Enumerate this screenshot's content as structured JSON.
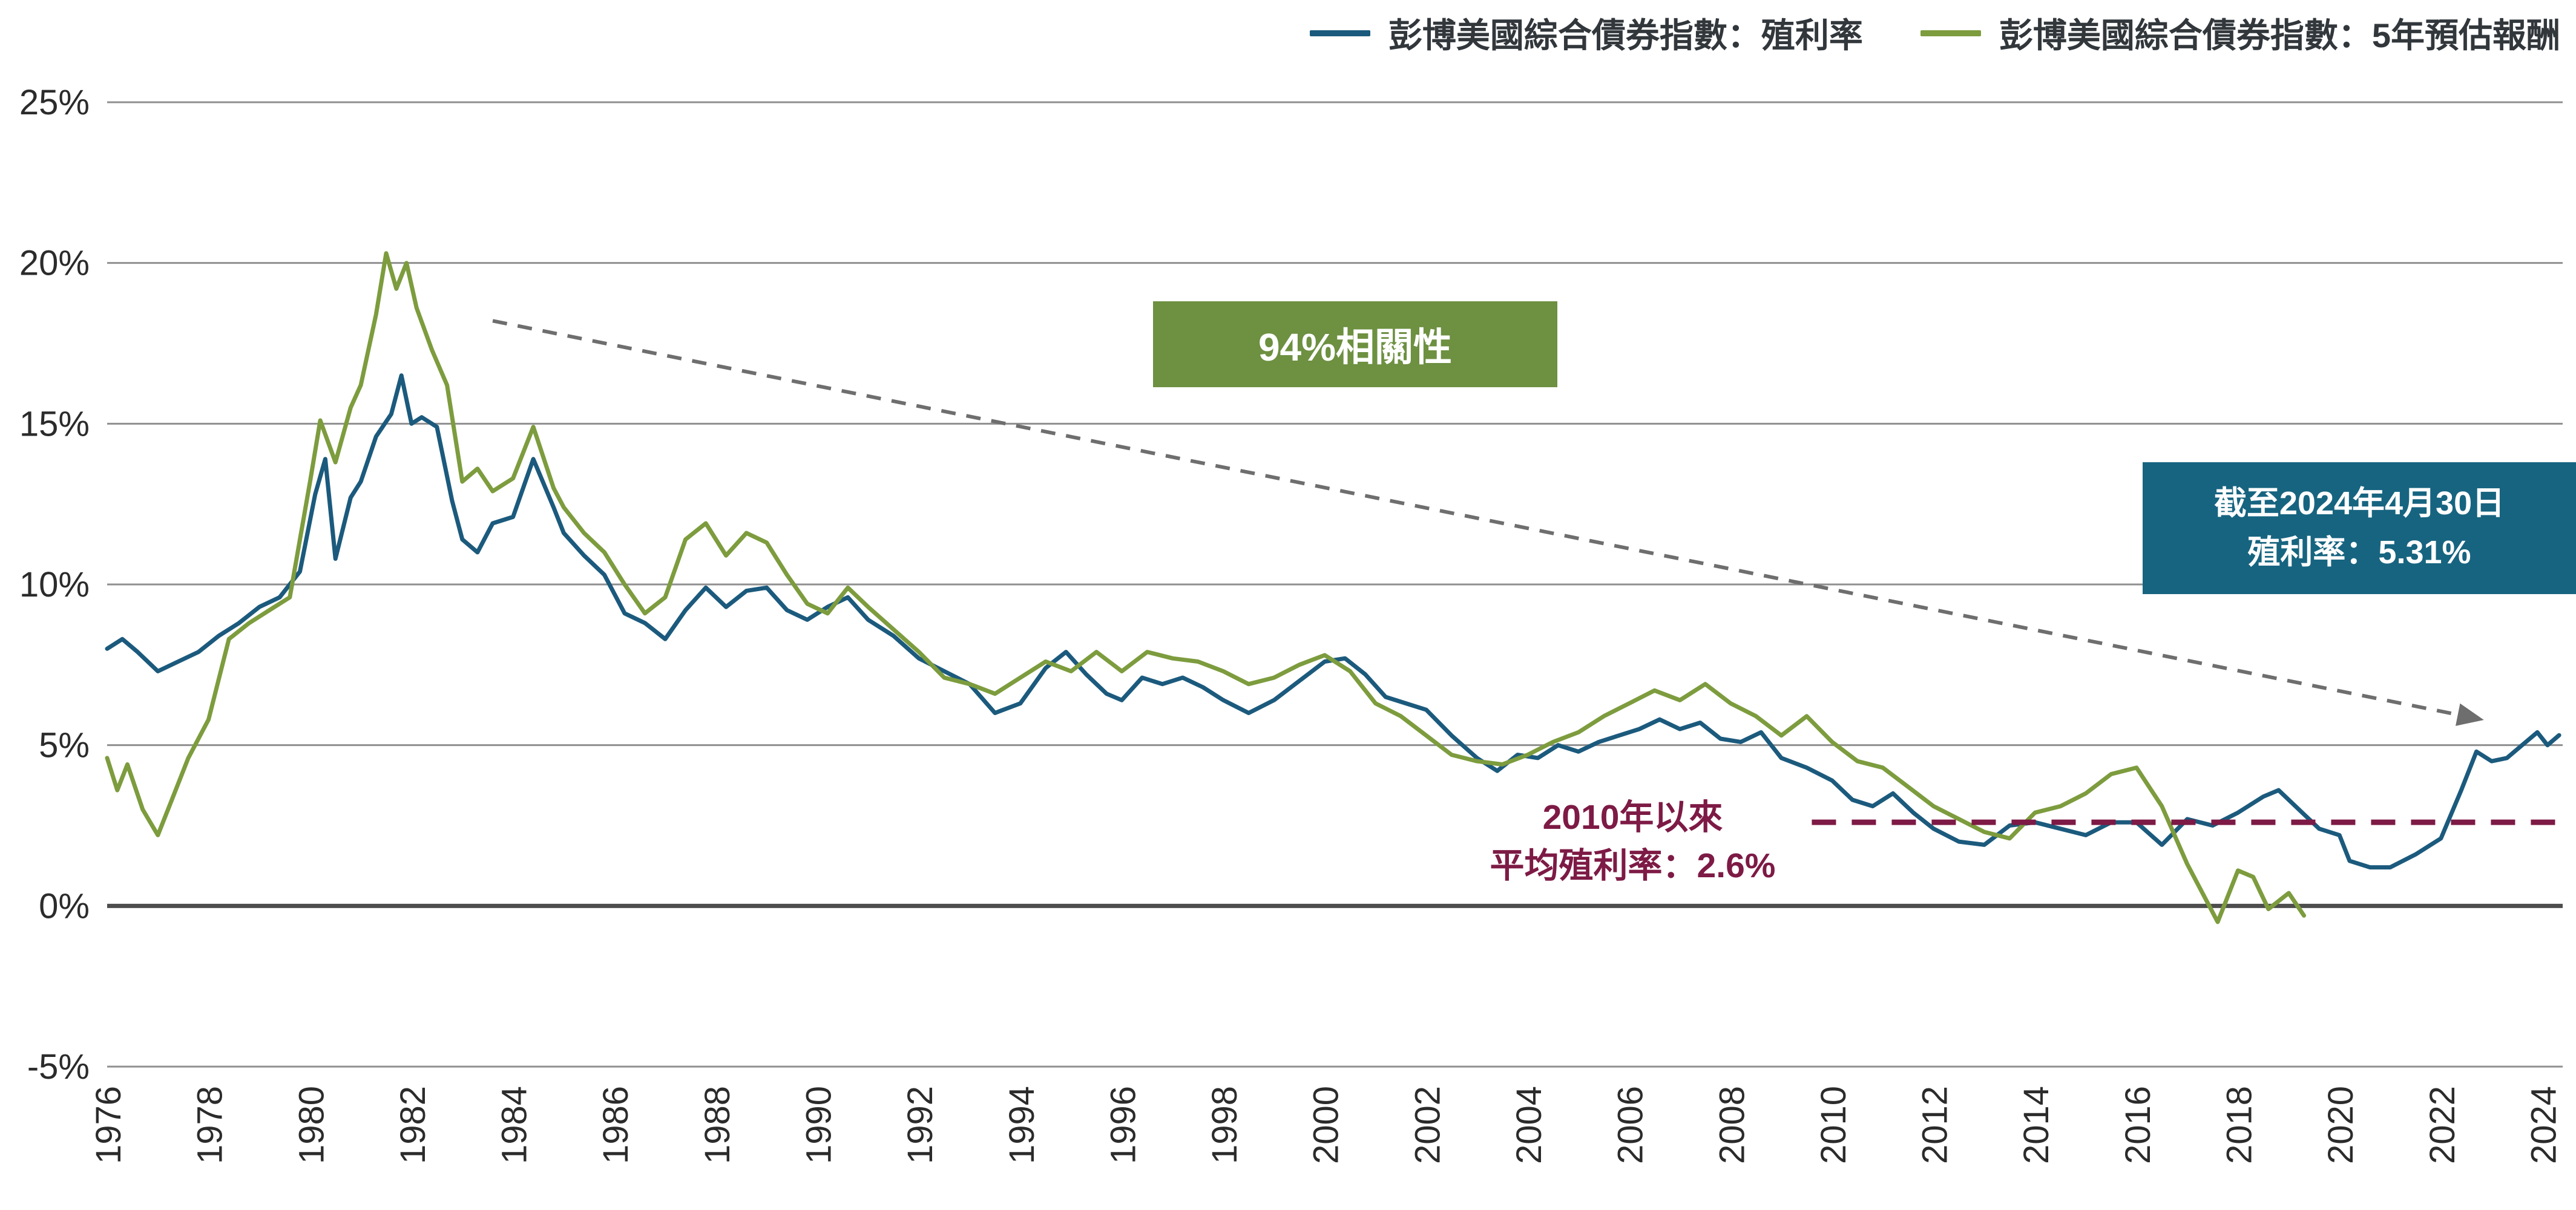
{
  "chart_data": {
    "type": "line",
    "title": "",
    "x_axis": {
      "min": 1976,
      "max": 2024.4,
      "tick_years": [
        1976,
        1978,
        1980,
        1982,
        1984,
        1986,
        1988,
        1990,
        1992,
        1994,
        1996,
        1998,
        2000,
        2002,
        2004,
        2006,
        2008,
        2010,
        2012,
        2014,
        2016,
        2018,
        2020,
        2022,
        2024
      ]
    },
    "y_axis": {
      "min": -5,
      "max": 25,
      "ticks": [
        {
          "v": 25,
          "label": "25%"
        },
        {
          "v": 20,
          "label": "20%"
        },
        {
          "v": 15,
          "label": "15%"
        },
        {
          "v": 10,
          "label": "10%"
        },
        {
          "v": 5,
          "label": "5%"
        },
        {
          "v": 0,
          "label": "0%"
        },
        {
          "v": -5,
          "label": "-5%"
        }
      ]
    },
    "grid": true,
    "legend_position": "top-right",
    "series": [
      {
        "name": "彭博美國綜合債券指數：殖利率",
        "color": "#1b5a7d",
        "points": [
          [
            1976.0,
            8.0
          ],
          [
            1976.3,
            8.3
          ],
          [
            1976.6,
            7.9
          ],
          [
            1977.0,
            7.3
          ],
          [
            1977.4,
            7.6
          ],
          [
            1977.8,
            7.9
          ],
          [
            1978.2,
            8.4
          ],
          [
            1978.6,
            8.8
          ],
          [
            1979.0,
            9.3
          ],
          [
            1979.4,
            9.6
          ],
          [
            1979.8,
            10.4
          ],
          [
            1980.1,
            12.8
          ],
          [
            1980.3,
            13.9
          ],
          [
            1980.5,
            10.8
          ],
          [
            1980.8,
            12.7
          ],
          [
            1981.0,
            13.2
          ],
          [
            1981.3,
            14.6
          ],
          [
            1981.6,
            15.3
          ],
          [
            1981.8,
            16.5
          ],
          [
            1982.0,
            15.0
          ],
          [
            1982.2,
            15.2
          ],
          [
            1982.5,
            14.9
          ],
          [
            1982.8,
            12.6
          ],
          [
            1983.0,
            11.4
          ],
          [
            1983.3,
            11.0
          ],
          [
            1983.6,
            11.9
          ],
          [
            1984.0,
            12.1
          ],
          [
            1984.4,
            13.9
          ],
          [
            1984.8,
            12.4
          ],
          [
            1985.0,
            11.6
          ],
          [
            1985.4,
            10.9
          ],
          [
            1985.8,
            10.3
          ],
          [
            1986.2,
            9.1
          ],
          [
            1986.6,
            8.8
          ],
          [
            1987.0,
            8.3
          ],
          [
            1987.4,
            9.2
          ],
          [
            1987.8,
            9.9
          ],
          [
            1988.2,
            9.3
          ],
          [
            1988.6,
            9.8
          ],
          [
            1989.0,
            9.9
          ],
          [
            1989.4,
            9.2
          ],
          [
            1989.8,
            8.9
          ],
          [
            1990.2,
            9.3
          ],
          [
            1990.6,
            9.6
          ],
          [
            1991.0,
            8.9
          ],
          [
            1991.5,
            8.4
          ],
          [
            1992.0,
            7.7
          ],
          [
            1992.5,
            7.3
          ],
          [
            1993.0,
            6.9
          ],
          [
            1993.5,
            6.0
          ],
          [
            1994.0,
            6.3
          ],
          [
            1994.5,
            7.4
          ],
          [
            1994.9,
            7.9
          ],
          [
            1995.3,
            7.2
          ],
          [
            1995.7,
            6.6
          ],
          [
            1996.0,
            6.4
          ],
          [
            1996.4,
            7.1
          ],
          [
            1996.8,
            6.9
          ],
          [
            1997.2,
            7.1
          ],
          [
            1997.6,
            6.8
          ],
          [
            1998.0,
            6.4
          ],
          [
            1998.5,
            6.0
          ],
          [
            1999.0,
            6.4
          ],
          [
            1999.5,
            7.0
          ],
          [
            2000.0,
            7.6
          ],
          [
            2000.4,
            7.7
          ],
          [
            2000.8,
            7.2
          ],
          [
            2001.2,
            6.5
          ],
          [
            2001.6,
            6.3
          ],
          [
            2002.0,
            6.1
          ],
          [
            2002.5,
            5.3
          ],
          [
            2003.0,
            4.6
          ],
          [
            2003.4,
            4.2
          ],
          [
            2003.8,
            4.7
          ],
          [
            2004.2,
            4.6
          ],
          [
            2004.6,
            5.0
          ],
          [
            2005.0,
            4.8
          ],
          [
            2005.4,
            5.1
          ],
          [
            2005.8,
            5.3
          ],
          [
            2006.2,
            5.5
          ],
          [
            2006.6,
            5.8
          ],
          [
            2007.0,
            5.5
          ],
          [
            2007.4,
            5.7
          ],
          [
            2007.8,
            5.2
          ],
          [
            2008.2,
            5.1
          ],
          [
            2008.6,
            5.4
          ],
          [
            2009.0,
            4.6
          ],
          [
            2009.5,
            4.3
          ],
          [
            2010.0,
            3.9
          ],
          [
            2010.4,
            3.3
          ],
          [
            2010.8,
            3.1
          ],
          [
            2011.2,
            3.5
          ],
          [
            2011.6,
            2.9
          ],
          [
            2012.0,
            2.4
          ],
          [
            2012.5,
            2.0
          ],
          [
            2013.0,
            1.9
          ],
          [
            2013.5,
            2.5
          ],
          [
            2014.0,
            2.6
          ],
          [
            2014.5,
            2.4
          ],
          [
            2015.0,
            2.2
          ],
          [
            2015.5,
            2.6
          ],
          [
            2016.0,
            2.6
          ],
          [
            2016.5,
            1.9
          ],
          [
            2017.0,
            2.7
          ],
          [
            2017.5,
            2.5
          ],
          [
            2018.0,
            2.9
          ],
          [
            2018.5,
            3.4
          ],
          [
            2018.8,
            3.6
          ],
          [
            2019.2,
            3.0
          ],
          [
            2019.6,
            2.4
          ],
          [
            2020.0,
            2.2
          ],
          [
            2020.2,
            1.4
          ],
          [
            2020.6,
            1.2
          ],
          [
            2021.0,
            1.2
          ],
          [
            2021.5,
            1.6
          ],
          [
            2022.0,
            2.1
          ],
          [
            2022.4,
            3.6
          ],
          [
            2022.7,
            4.8
          ],
          [
            2023.0,
            4.5
          ],
          [
            2023.3,
            4.6
          ],
          [
            2023.6,
            5.0
          ],
          [
            2023.9,
            5.4
          ],
          [
            2024.1,
            5.0
          ],
          [
            2024.33,
            5.31
          ]
        ]
      },
      {
        "name": "彭博美國綜合債券指數：5年預估報酬",
        "color": "#7d9c3e",
        "points": [
          [
            1976.0,
            4.6
          ],
          [
            1976.2,
            3.6
          ],
          [
            1976.4,
            4.4
          ],
          [
            1976.7,
            3.0
          ],
          [
            1977.0,
            2.2
          ],
          [
            1977.3,
            3.4
          ],
          [
            1977.6,
            4.6
          ],
          [
            1978.0,
            5.8
          ],
          [
            1978.4,
            8.3
          ],
          [
            1978.8,
            8.8
          ],
          [
            1979.2,
            9.2
          ],
          [
            1979.6,
            9.6
          ],
          [
            1980.0,
            13.2
          ],
          [
            1980.2,
            15.1
          ],
          [
            1980.5,
            13.8
          ],
          [
            1980.8,
            15.5
          ],
          [
            1981.0,
            16.2
          ],
          [
            1981.3,
            18.4
          ],
          [
            1981.5,
            20.3
          ],
          [
            1981.7,
            19.2
          ],
          [
            1981.9,
            20.0
          ],
          [
            1982.1,
            18.6
          ],
          [
            1982.4,
            17.3
          ],
          [
            1982.7,
            16.2
          ],
          [
            1983.0,
            13.2
          ],
          [
            1983.3,
            13.6
          ],
          [
            1983.6,
            12.9
          ],
          [
            1984.0,
            13.3
          ],
          [
            1984.4,
            14.9
          ],
          [
            1984.8,
            13.0
          ],
          [
            1985.0,
            12.4
          ],
          [
            1985.4,
            11.6
          ],
          [
            1985.8,
            11.0
          ],
          [
            1986.2,
            10.0
          ],
          [
            1986.6,
            9.1
          ],
          [
            1987.0,
            9.6
          ],
          [
            1987.4,
            11.4
          ],
          [
            1987.8,
            11.9
          ],
          [
            1988.2,
            10.9
          ],
          [
            1988.6,
            11.6
          ],
          [
            1989.0,
            11.3
          ],
          [
            1989.4,
            10.3
          ],
          [
            1989.8,
            9.4
          ],
          [
            1990.2,
            9.1
          ],
          [
            1990.6,
            9.9
          ],
          [
            1991.0,
            9.3
          ],
          [
            1991.5,
            8.6
          ],
          [
            1992.0,
            7.9
          ],
          [
            1992.5,
            7.1
          ],
          [
            1993.0,
            6.9
          ],
          [
            1993.5,
            6.6
          ],
          [
            1994.0,
            7.1
          ],
          [
            1994.5,
            7.6
          ],
          [
            1995.0,
            7.3
          ],
          [
            1995.5,
            7.9
          ],
          [
            1996.0,
            7.3
          ],
          [
            1996.5,
            7.9
          ],
          [
            1997.0,
            7.7
          ],
          [
            1997.5,
            7.6
          ],
          [
            1998.0,
            7.3
          ],
          [
            1998.5,
            6.9
          ],
          [
            1999.0,
            7.1
          ],
          [
            1999.5,
            7.5
          ],
          [
            2000.0,
            7.8
          ],
          [
            2000.5,
            7.3
          ],
          [
            2001.0,
            6.3
          ],
          [
            2001.5,
            5.9
          ],
          [
            2002.0,
            5.3
          ],
          [
            2002.5,
            4.7
          ],
          [
            2003.0,
            4.5
          ],
          [
            2003.5,
            4.4
          ],
          [
            2004.0,
            4.7
          ],
          [
            2004.5,
            5.1
          ],
          [
            2005.0,
            5.4
          ],
          [
            2005.5,
            5.9
          ],
          [
            2006.0,
            6.3
          ],
          [
            2006.5,
            6.7
          ],
          [
            2007.0,
            6.4
          ],
          [
            2007.5,
            6.9
          ],
          [
            2008.0,
            6.3
          ],
          [
            2008.5,
            5.9
          ],
          [
            2009.0,
            5.3
          ],
          [
            2009.5,
            5.9
          ],
          [
            2010.0,
            5.1
          ],
          [
            2010.5,
            4.5
          ],
          [
            2011.0,
            4.3
          ],
          [
            2011.5,
            3.7
          ],
          [
            2012.0,
            3.1
          ],
          [
            2012.5,
            2.7
          ],
          [
            2013.0,
            2.3
          ],
          [
            2013.5,
            2.1
          ],
          [
            2014.0,
            2.9
          ],
          [
            2014.5,
            3.1
          ],
          [
            2015.0,
            3.5
          ],
          [
            2015.5,
            4.1
          ],
          [
            2016.0,
            4.3
          ],
          [
            2016.5,
            3.1
          ],
          [
            2017.0,
            1.3
          ],
          [
            2017.3,
            0.4
          ],
          [
            2017.6,
            -0.5
          ],
          [
            2018.0,
            1.1
          ],
          [
            2018.3,
            0.9
          ],
          [
            2018.6,
            -0.1
          ],
          [
            2019.0,
            0.4
          ],
          [
            2019.3,
            -0.3
          ]
        ]
      }
    ],
    "annotations": {
      "correlation_box": {
        "text": "94%相關性",
        "bg": "#6d9041"
      },
      "yield_box": {
        "line1": "截至2024年4月30日",
        "line2": "殖利率：5.31%",
        "bg": "#176480"
      },
      "avg_yield_label": {
        "line1": "2010年以來",
        "line2": "平均殖利率：2.6%",
        "color": "#7d1a45"
      },
      "avg_yield_line": {
        "y": 2.6,
        "x_from": 2009.6,
        "x_to": 2024.4,
        "color": "#7d1a45"
      },
      "trend_arrow": {
        "from": [
          1983.6,
          18.2
        ],
        "to": [
          2022.8,
          5.8
        ],
        "color": "#6e6e6e"
      }
    }
  }
}
